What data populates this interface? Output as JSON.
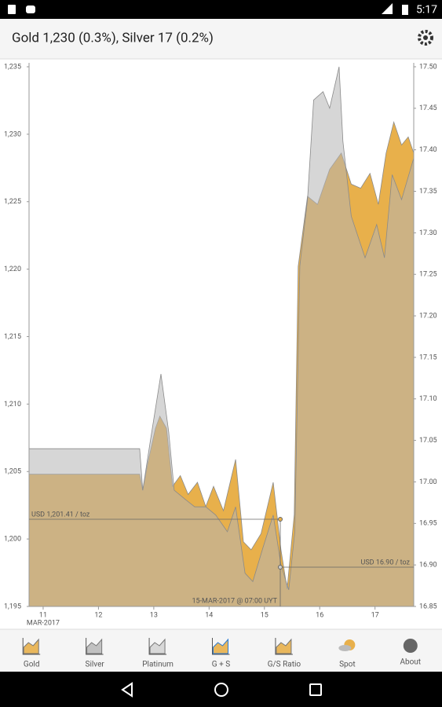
{
  "status_bar": {
    "time": "5:17"
  },
  "app_bar": {
    "title": "Gold 1,230 (0.3%), Silver 17 (0.2%)"
  },
  "chart_data": {
    "type": "area",
    "xlim": [
      10.745,
      17.7
    ],
    "xticks": [
      11,
      12,
      13,
      14,
      15,
      16,
      17
    ],
    "x_sublabel": "MAR-2017",
    "ylim": [
      1195,
      1235
    ],
    "yticks": [
      {
        "value": 1195,
        "label": "1,195"
      },
      {
        "value": 1200,
        "label": "1,200"
      },
      {
        "value": 1205,
        "label": "1,205"
      },
      {
        "value": 1210,
        "label": "1,210"
      },
      {
        "value": 1215,
        "label": "1,215"
      },
      {
        "value": 1220,
        "label": "1,220"
      },
      {
        "value": 1225,
        "label": "1,225"
      },
      {
        "value": 1230,
        "label": "1,230"
      },
      {
        "value": 1235,
        "label": "1,235"
      }
    ],
    "y2lim": [
      16.85,
      17.5
    ],
    "y2ticks": [
      16.85,
      {
        "value": 16.9,
        "label": "16.90"
      },
      16.95,
      {
        "value": 17.0,
        "label": "17.00"
      },
      17.05,
      {
        "value": 17.1,
        "label": "17.10"
      },
      17.15,
      {
        "value": 17.2,
        "label": "17.20"
      },
      17.25,
      {
        "value": 17.3,
        "label": "17.30"
      },
      17.35,
      {
        "value": 17.4,
        "label": "17.40"
      },
      17.45,
      {
        "value": 17.5,
        "label": "17.50"
      }
    ],
    "series": [
      {
        "name": "Gold",
        "color": "#e8b04b",
        "axis": "y",
        "x": [
          10.745,
          12.745,
          12.8,
          12.89,
          13.03,
          13.11,
          13.23,
          13.34,
          13.48,
          13.62,
          13.79,
          13.94,
          14.08,
          14.26,
          14.48,
          14.62,
          14.76,
          14.94,
          15.16,
          15.3,
          15.41,
          15.54,
          15.61,
          15.78,
          15.96,
          16.18,
          16.39,
          16.57,
          16.74,
          16.91,
          17.06,
          17.2,
          17.34,
          17.48,
          17.6,
          17.7
        ],
        "values": [
          1204.8,
          1204.8,
          1203.6,
          1205.6,
          1208.2,
          1209.1,
          1208.2,
          1203.9,
          1204.7,
          1203.3,
          1204.2,
          1202.4,
          1203.9,
          1202.1,
          1205.9,
          1199.8,
          1199.2,
          1200.4,
          1204.2,
          1199.2,
          1196.3,
          1201.8,
          1220.2,
          1225.4,
          1224.8,
          1227.4,
          1228.6,
          1226.3,
          1226.0,
          1227.1,
          1224.8,
          1228.6,
          1230.9,
          1229.2,
          1229.8,
          1228.6
        ]
      },
      {
        "name": "Silver",
        "color": "#b4b4b4",
        "axis": "y2",
        "x": [
          10.745,
          12.745,
          12.8,
          12.94,
          13.13,
          13.27,
          13.37,
          13.55,
          13.74,
          13.94,
          14.12,
          14.33,
          14.48,
          14.65,
          14.79,
          14.97,
          15.16,
          15.3,
          15.44,
          15.55,
          15.64,
          15.78,
          15.89,
          16.06,
          16.18,
          16.35,
          16.42,
          16.57,
          16.82,
          17.03,
          17.17,
          17.31,
          17.48,
          17.7
        ],
        "values": [
          17.04,
          17.04,
          16.99,
          17.05,
          17.13,
          17.06,
          16.99,
          16.98,
          16.97,
          16.97,
          16.96,
          16.94,
          16.97,
          16.89,
          16.88,
          16.92,
          16.96,
          16.9,
          16.87,
          16.94,
          17.26,
          17.34,
          17.46,
          17.47,
          17.45,
          17.5,
          17.41,
          17.32,
          17.27,
          17.31,
          17.27,
          17.37,
          17.34,
          17.39
        ]
      }
    ],
    "annotations": [
      "USD 1,201.41 / toz",
      "USD 16.90 / toz",
      "15-MAR-2017 @ 07:00 UYT"
    ]
  },
  "bottom_nav": [
    "Gold",
    "Silver",
    "Platinum",
    "G + S",
    "G/S Ratio",
    "Spot",
    "About"
  ]
}
